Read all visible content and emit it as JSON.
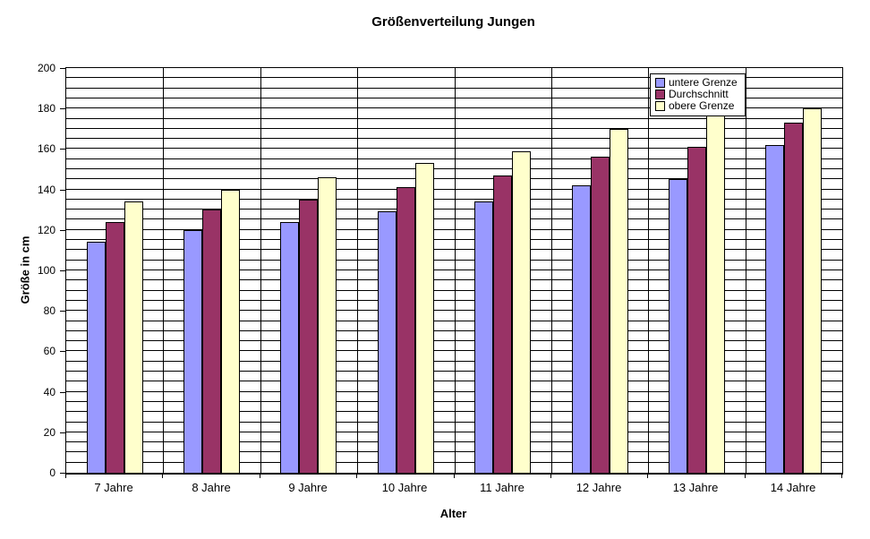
{
  "chart_data": {
    "type": "bar",
    "title": "Größenverteilung Jungen",
    "xlabel": "Alter",
    "ylabel": "Größe in cm",
    "categories": [
      "7 Jahre",
      "8 Jahre",
      "9 Jahre",
      "10 Jahre",
      "11 Jahre",
      "12 Jahre",
      "13 Jahre",
      "14 Jahre"
    ],
    "series": [
      {
        "name": "untere Grenze",
        "color": "#9999FF",
        "values": [
          114,
          120,
          124,
          129,
          134,
          142,
          145,
          162
        ]
      },
      {
        "name": "Durchschnitt",
        "color": "#993366",
        "values": [
          124,
          130,
          135,
          141,
          147,
          156,
          161,
          173
        ]
      },
      {
        "name": "obere Grenze",
        "color": "#FFFFCC",
        "values": [
          134,
          140,
          146,
          153,
          159,
          170,
          177,
          180
        ]
      }
    ],
    "ylim": [
      0,
      200
    ],
    "y_major_step": 20,
    "y_minor_step": 5,
    "grid": "horizontal minor gridlines every 5, vertical category separators, all black on white",
    "gridline_color": "#000000",
    "background_color": "#FFFFFF",
    "legend_position": "top-right inside plot",
    "legend_entries": [
      "untere Grenze",
      "Durchschnitt",
      "obere Grenze"
    ]
  }
}
